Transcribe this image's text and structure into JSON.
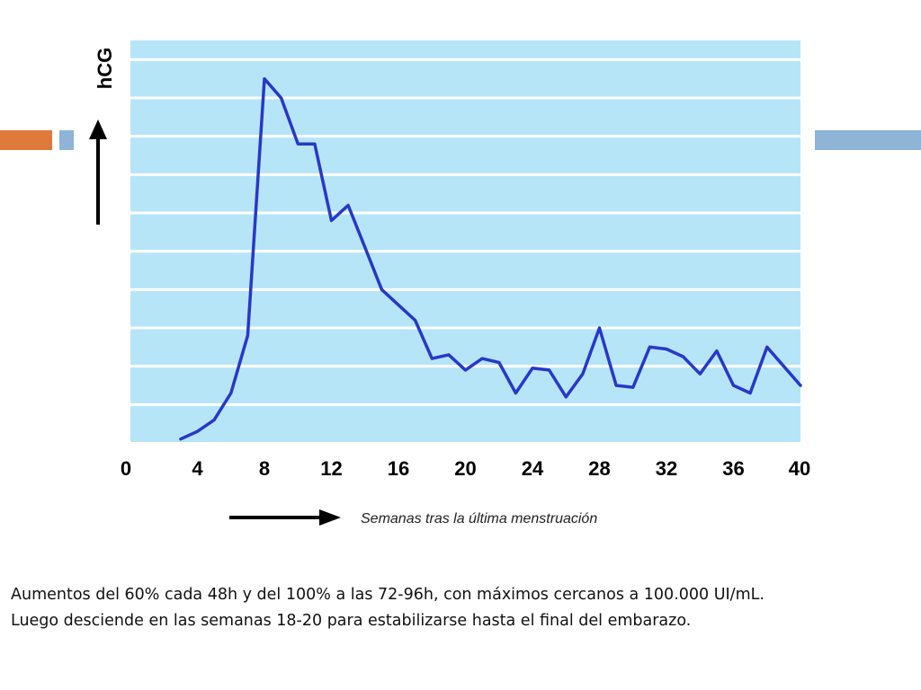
{
  "colors": {
    "plot_background": "#b7e5f8",
    "gridline": "#ffffff",
    "line": "#2838c8",
    "accent_orange": "#e07a3a",
    "accent_blue": "#8eb4d6"
  },
  "chart_data": {
    "type": "line",
    "ylabel": "hCG",
    "xlabel": "Semanas tras la última menstruación",
    "xlim": [
      0,
      40
    ],
    "xticks": [
      0,
      4,
      8,
      12,
      16,
      20,
      24,
      28,
      32,
      36,
      40
    ],
    "ylim": [
      0,
      10.5
    ],
    "y_axis_has_no_numbers": true,
    "grid": "horizontal",
    "series": [
      {
        "x": [
          3,
          4,
          5,
          6,
          7,
          8,
          9,
          10,
          11,
          12,
          13,
          14,
          15,
          16,
          17,
          18,
          19,
          20,
          21,
          22,
          23,
          24,
          25,
          26,
          27,
          28,
          29,
          30,
          31,
          32,
          33,
          34,
          35,
          36,
          37,
          38,
          39,
          40
        ],
        "y": [
          0.1,
          0.3,
          0.6,
          1.3,
          2.8,
          9.5,
          9.0,
          7.8,
          7.8,
          5.8,
          6.2,
          5.1,
          4.0,
          3.6,
          3.2,
          2.2,
          2.3,
          1.9,
          2.2,
          2.1,
          1.3,
          1.95,
          1.9,
          1.2,
          1.8,
          3.0,
          1.5,
          1.45,
          2.5,
          2.45,
          2.25,
          1.8,
          2.4,
          1.5,
          1.3,
          2.5,
          2.0,
          1.5
        ]
      }
    ]
  },
  "caption": {
    "line1": "Aumentos del 60% cada 48h y del 100% a las 72-96h, con máximos cercanos a 100.000 UI/mL.",
    "line2": "Luego desciende en las semanas 18-20 para estabilizarse hasta el final del embarazo."
  }
}
